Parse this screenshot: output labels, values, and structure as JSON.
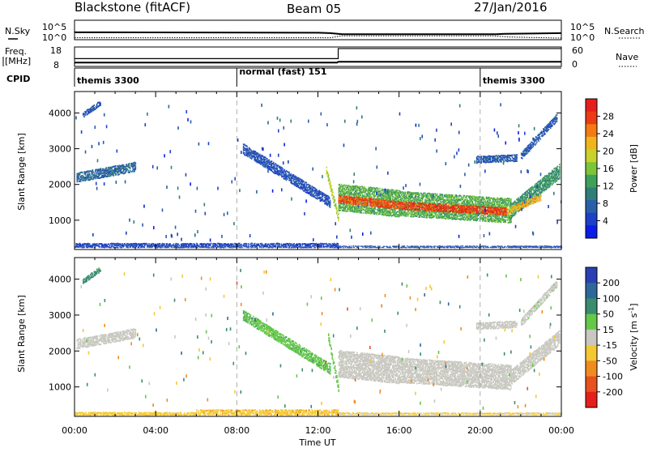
{
  "header": {
    "station": "Blackstone (fitACF)",
    "beam": "Beam 05",
    "date": "27/Jan/2016"
  },
  "side_labels": {
    "n_sky": "N.Sky",
    "freq": "Freq.",
    "freq_unit": "[MHz]",
    "cpid": "CPID",
    "n_search": "N.Search",
    "nave": "Nave"
  },
  "noise_panel": {
    "left_ticks": [
      "10^5",
      "10^0"
    ],
    "right_ticks": [
      "10^5",
      "10^0"
    ],
    "sky_trace": [
      [
        0,
        30
      ],
      [
        0.05,
        31
      ],
      [
        12,
        32
      ],
      [
        12.6,
        33
      ],
      [
        13.2,
        36
      ],
      [
        20.8,
        36
      ],
      [
        21.2,
        35
      ],
      [
        22.5,
        34
      ],
      [
        24,
        33
      ]
    ],
    "search_trace": [
      [
        0,
        45
      ],
      [
        12.6,
        45
      ],
      [
        13.2,
        40
      ],
      [
        20.6,
        40
      ],
      [
        21.4,
        43
      ],
      [
        24,
        46
      ]
    ]
  },
  "freq_panel": {
    "left_ticks": [
      "18",
      "8"
    ],
    "right_ticks": [
      "60",
      "0"
    ],
    "freq_trace": [
      [
        0,
        9.8
      ],
      [
        0.05,
        10.0
      ],
      [
        12.95,
        10.0
      ],
      [
        13.0,
        10.4
      ],
      [
        24,
        10.4
      ]
    ],
    "nave_step": [
      [
        0,
        20
      ],
      [
        13.0,
        20
      ],
      [
        13.0,
        46
      ],
      [
        24,
        46
      ]
    ]
  },
  "cpid_panel": {
    "segments": [
      {
        "start": 0,
        "end": 8,
        "label": "themis 3300"
      },
      {
        "start": 8,
        "end": 20,
        "label": "normal (fast) 151"
      },
      {
        "start": 20,
        "end": 24,
        "label": "themis 3300"
      }
    ]
  },
  "axes": {
    "xlabel": "Time UT",
    "x_ticks": [
      "00:00",
      "04:00",
      "08:00",
      "12:00",
      "16:00",
      "20:00",
      "00:00"
    ],
    "x_range": [
      0,
      24
    ],
    "ylabel": "Slant Range [km]",
    "y_ticks": [
      1000,
      2000,
      3000,
      4000
    ],
    "y_range": [
      180,
      4600
    ]
  },
  "chart_data": [
    {
      "type": "heatmap",
      "panel": "power",
      "colorbar_label": "Power [dB]",
      "colorbar_ticks": [
        "4",
        "8",
        "12",
        "16",
        "20",
        "24",
        "28"
      ],
      "colorbar_range": [
        0,
        32
      ],
      "colors": [
        "#0a1ee6",
        "#1e40c8",
        "#2a5ea8",
        "#2f7e7a",
        "#3fa05a",
        "#7cc43a",
        "#c8d22a",
        "#f0b41e",
        "#f57a14",
        "#ec3c14",
        "#e61e1e"
      ],
      "bands": [
        {
          "t0": 0.1,
          "t1": 3.0,
          "r_start": 2200,
          "r_end": 2500,
          "thick": 280,
          "value": 8
        },
        {
          "t0": 0.4,
          "t1": 1.3,
          "r_start": 3950,
          "r_end": 4300,
          "thick": 150,
          "value": 6
        },
        {
          "t0": 8.3,
          "t1": 12.6,
          "r_start": 3000,
          "r_end": 1500,
          "thick": 300,
          "value": 6
        },
        {
          "t0": 12.4,
          "t1": 13.0,
          "r_start": 2400,
          "r_end": 1050,
          "thick": 220,
          "value": 18
        },
        {
          "t0": 13.0,
          "t1": 16.0,
          "r_start": 1650,
          "r_end": 1470,
          "thick": 760,
          "value": 14
        },
        {
          "t0": 16.0,
          "t1": 21.5,
          "r_start": 1470,
          "r_end": 1270,
          "thick": 700,
          "value": 14
        },
        {
          "t0": 21.5,
          "t1": 23.9,
          "r_start": 1270,
          "r_end": 2380,
          "thick": 420,
          "value": 12
        },
        {
          "t0": 13.0,
          "t1": 16.0,
          "r_start": 1600,
          "r_end": 1420,
          "thick": 230,
          "value": 27
        },
        {
          "t0": 16.0,
          "t1": 21.3,
          "r_start": 1420,
          "r_end": 1250,
          "thick": 220,
          "value": 28
        },
        {
          "t0": 21.3,
          "t1": 23.0,
          "r_start": 1250,
          "r_end": 1650,
          "thick": 180,
          "value": 22
        },
        {
          "t0": 22.0,
          "t1": 23.8,
          "r_start": 2800,
          "r_end": 3900,
          "thick": 220,
          "value": 7
        },
        {
          "t0": 19.8,
          "t1": 21.8,
          "r_start": 2700,
          "r_end": 2750,
          "thick": 200,
          "value": 7
        },
        {
          "t0": 0.0,
          "t1": 13.0,
          "r_start": 300,
          "r_end": 300,
          "thick": 130,
          "value": 5
        },
        {
          "t0": 13.0,
          "t1": 24.0,
          "r_start": 260,
          "r_end": 260,
          "thick": 60,
          "value": 6
        }
      ]
    },
    {
      "type": "heatmap",
      "panel": "velocity",
      "colorbar_label": "Velocity [m s^-1]",
      "colorbar_ticks": [
        "200",
        "100",
        "50",
        "15",
        "-15",
        "-50",
        "-100",
        "-200"
      ],
      "colors": [
        "#2a3fb4",
        "#2e6898",
        "#3a8c6e",
        "#64c848",
        "#c8c8c0",
        "#f4c832",
        "#f08c1e",
        "#e8501e",
        "#e61e1e"
      ],
      "bands": [
        {
          "t0": 0.1,
          "t1": 3.0,
          "r_start": 2200,
          "r_end": 2500,
          "thick": 280,
          "value": 0
        },
        {
          "t0": 0.4,
          "t1": 1.3,
          "r_start": 3950,
          "r_end": 4300,
          "thick": 150,
          "value": 60
        },
        {
          "t0": 8.3,
          "t1": 12.6,
          "r_start": 3000,
          "r_end": 1500,
          "thick": 300,
          "value": 40
        },
        {
          "t0": 12.5,
          "t1": 13.0,
          "r_start": 2400,
          "r_end": 950,
          "thick": 220,
          "value": 30
        },
        {
          "t0": 13.0,
          "t1": 16.0,
          "r_start": 1650,
          "r_end": 1470,
          "thick": 760,
          "value": 0
        },
        {
          "t0": 16.0,
          "t1": 21.5,
          "r_start": 1470,
          "r_end": 1270,
          "thick": 700,
          "value": 0
        },
        {
          "t0": 21.5,
          "t1": 23.9,
          "r_start": 1270,
          "r_end": 2380,
          "thick": 420,
          "value": 0
        },
        {
          "t0": 22.0,
          "t1": 23.8,
          "r_start": 2800,
          "r_end": 3900,
          "thick": 220,
          "value": 5
        },
        {
          "t0": 19.8,
          "t1": 21.8,
          "r_start": 2700,
          "r_end": 2750,
          "thick": 200,
          "value": 0
        },
        {
          "t0": 0.0,
          "t1": 6.0,
          "r_start": 260,
          "r_end": 260,
          "thick": 90,
          "value": -30
        },
        {
          "t0": 6.0,
          "t1": 13.0,
          "r_start": 300,
          "r_end": 300,
          "thick": 150,
          "value": -40
        },
        {
          "t0": 13.0,
          "t1": 24.0,
          "r_start": 260,
          "r_end": 260,
          "thick": 60,
          "value": -20
        }
      ]
    }
  ]
}
